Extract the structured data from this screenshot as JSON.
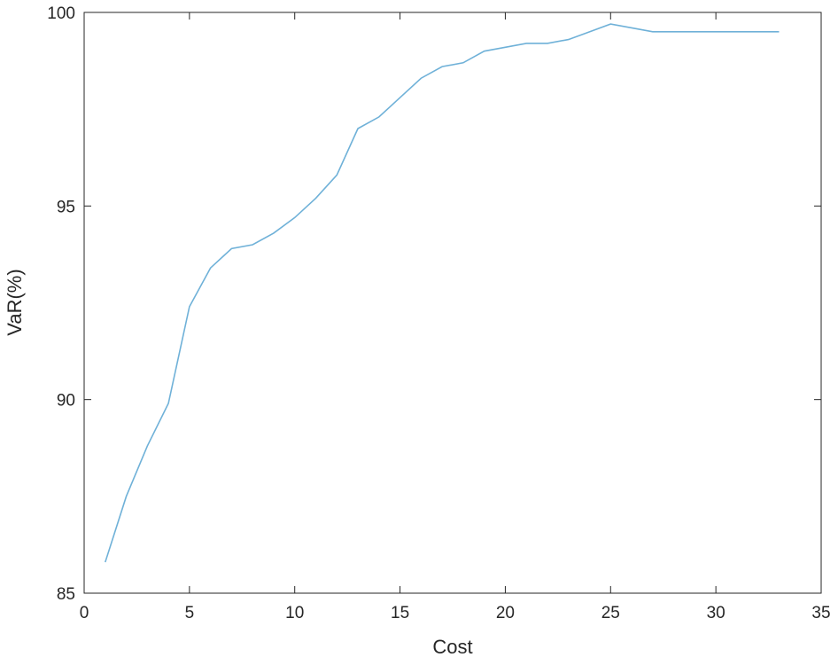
{
  "chart_data": {
    "type": "line",
    "x_label": "Cost",
    "y_label": "VaR(%)",
    "x": [
      1,
      2,
      3,
      4,
      5,
      6,
      7,
      8,
      9,
      10,
      11,
      12,
      13,
      14,
      15,
      16,
      17,
      18,
      19,
      20,
      21,
      22,
      23,
      24,
      25,
      26,
      27,
      28,
      29,
      30,
      31,
      32,
      33
    ],
    "series": [
      {
        "name": "VaR",
        "color": "#6fb1d8",
        "values": [
          85.8,
          87.5,
          88.8,
          89.9,
          92.4,
          93.4,
          93.9,
          94.0,
          94.3,
          94.7,
          95.2,
          95.8,
          97.0,
          97.3,
          97.8,
          98.3,
          98.6,
          98.7,
          99.0,
          99.1,
          99.2,
          99.2,
          99.3,
          99.5,
          99.7,
          99.6,
          99.5,
          99.5,
          99.5,
          99.5,
          99.5,
          99.5,
          99.5
        ]
      }
    ],
    "xlim": [
      0,
      35
    ],
    "xticks": [
      0,
      5,
      10,
      15,
      20,
      25,
      30,
      35
    ],
    "ylim": [
      85,
      100
    ],
    "yticks": [
      85,
      90,
      95,
      100
    ],
    "grid": false
  }
}
